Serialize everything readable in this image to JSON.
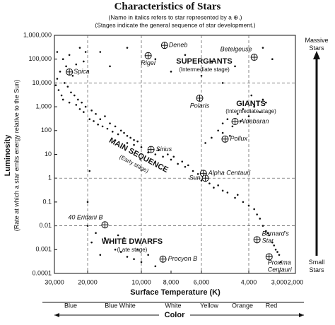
{
  "chart_data": {
    "type": "scatter",
    "title": "Characteristics of Stars",
    "subtitle": [
      "(Name in italics refers to star represented by a ⊕.)",
      "(Stages indicate the general sequence of star development.)"
    ],
    "y_label": [
      "Luminosity",
      "(Rate at which a star emits energy relative to the Sun)"
    ],
    "x_label": "Surface Temperature (K)",
    "color_label": "Color",
    "colors": [
      "Blue",
      "Blue White",
      "White",
      "Yellow",
      "Orange",
      "Red"
    ],
    "mass_labels": [
      "Massive Stars",
      "Small Stars"
    ],
    "regions": [
      {
        "name": "SUPERGIANTS",
        "stage": "(Intermediate stage)"
      },
      {
        "name": "GIANTS",
        "stage": "(Intermediate stage)"
      },
      {
        "name": "MAIN SEQUENCE",
        "stage": "(Early stage)"
      },
      {
        "name": "WHITE DWARFS",
        "stage": "(Late stage)"
      }
    ],
    "ylog": true,
    "ylim": [
      0.0001,
      1000000
    ],
    "yticks": [
      {
        "value": 1000000,
        "label": "1,000,000"
      },
      {
        "value": 100000,
        "label": "100,000"
      },
      {
        "value": 10000,
        "label": "10,000"
      },
      {
        "value": 1000,
        "label": "1,000"
      },
      100,
      10,
      1,
      0.1,
      0.01,
      0.001,
      0.0001
    ],
    "xlim": [
      30000,
      2000
    ],
    "xticks": [
      {
        "value": 30000,
        "label": "30,000"
      },
      {
        "value": 20000,
        "label": "20,000"
      },
      {
        "value": 10000,
        "label": "10,000"
      },
      {
        "value": 8000,
        "label": "8,000"
      },
      {
        "value": 6000,
        "label": "6,000"
      },
      {
        "value": 4000,
        "label": "4,000"
      },
      {
        "value": 3000,
        "label": "3,000"
      },
      {
        "value": 2000,
        "label": "2,000"
      }
    ],
    "xgrid": [
      20000,
      10000,
      6000,
      4000
    ],
    "ygrid": [
      10000,
      1,
      0.01
    ],
    "color": "#111111",
    "points": {
      "x": [
        29000,
        27000,
        25000,
        22000,
        21000,
        28000,
        26000,
        24000,
        23000,
        20500,
        29500,
        28500,
        27500,
        26500,
        25500,
        24500,
        23500,
        22500,
        21500,
        20500,
        29000,
        27000,
        25000,
        23000,
        22000,
        21000,
        19000,
        18000,
        17000,
        16000,
        15000,
        14000,
        13000,
        12500,
        12000,
        11500,
        11000,
        10500,
        19500,
        18500,
        17500,
        16500,
        15500,
        14500,
        13500,
        12000,
        11000,
        10000,
        9500,
        9000,
        8500,
        8000,
        7500,
        7000,
        6500,
        6200,
        8800,
        8200,
        7800,
        7200,
        6800,
        6000,
        5600,
        5200,
        5000,
        4800,
        4500,
        4200,
        4000,
        3800,
        3600,
        3500,
        3400,
        3300,
        3200,
        3100,
        3000,
        2900,
        3050,
        3150,
        3350,
        3700,
        4400,
        5400,
        5500,
        5200,
        5000,
        4800,
        4600,
        4400,
        4200,
        4000,
        3800,
        3600,
        3500,
        3400,
        5800,
        5000,
        4700,
        4300,
        3900,
        17000,
        12000,
        9000,
        7000,
        5500,
        4500,
        3500,
        15000,
        6000,
        5000,
        3200,
        8000,
        20000,
        18000,
        16000,
        15000,
        14000,
        13000,
        12000,
        11000,
        10000,
        9000,
        17000,
        19000,
        12500,
        20000,
        10500,
        9500,
        13500,
        19500
      ],
      "values": [
        200000,
        100000,
        150000,
        300000,
        80000,
        30000,
        50000,
        20000,
        60000,
        200000,
        8000,
        5000,
        3000,
        10000,
        7000,
        4000,
        3000,
        2000,
        1500,
        1000,
        15000,
        2000,
        1500,
        1200,
        800,
        600,
        700,
        500,
        300,
        400,
        200,
        150,
        100,
        80,
        60,
        50,
        40,
        35,
        300,
        250,
        180,
        150,
        120,
        90,
        70,
        30,
        25,
        20,
        12,
        10,
        8,
        6,
        4,
        3,
        2,
        1.5,
        15,
        10,
        8,
        5,
        3.5,
        0.8,
        0.6,
        0.5,
        0.3,
        0.25,
        0.15,
        0.1,
        0.07,
        0.05,
        0.02,
        0.01,
        0.006,
        0.004,
        0.002,
        0.001,
        0.0006,
        0.0003,
        0.0008,
        0.0015,
        0.005,
        0.03,
        0.2,
        0.4,
        50,
        100,
        200,
        300,
        150,
        500,
        800,
        400,
        1000,
        600,
        2000,
        1500,
        30,
        80,
        60,
        250,
        3000,
        200000,
        300000,
        100000,
        150000,
        80000,
        50000,
        300000,
        50000,
        20000,
        10000,
        100000,
        30000,
        0.01,
        0.005,
        0.003,
        0.002,
        0.001,
        0.0008,
        0.0005,
        0.0004,
        0.0003,
        0.0002,
        0.0006,
        0.002,
        0.003,
        0.1,
        0.001,
        0.0006,
        0.004,
        2
      ]
    },
    "named_stars": {
      "labels": [
        "Deneb",
        "Rigel",
        "Betelgeuse",
        "Spica",
        "Polaris",
        "Aldebaran",
        "Pollux",
        "Sirius",
        "Alpha Centauri",
        "Sun",
        "40 Eridani B",
        "Procyon B",
        "Barnard's Star",
        "Proxima Centauri"
      ],
      "x": [
        8400,
        9500,
        3800,
        25000,
        6100,
        4500,
        4900,
        9300,
        5900,
        5800,
        16000,
        8500,
        3700,
        3300
      ],
      "values": [
        380000,
        140000,
        120000,
        29000,
        2300,
        240,
        44,
        16,
        1.6,
        1,
        0.011,
        0.0004,
        0.0026,
        0.0005
      ]
    }
  }
}
